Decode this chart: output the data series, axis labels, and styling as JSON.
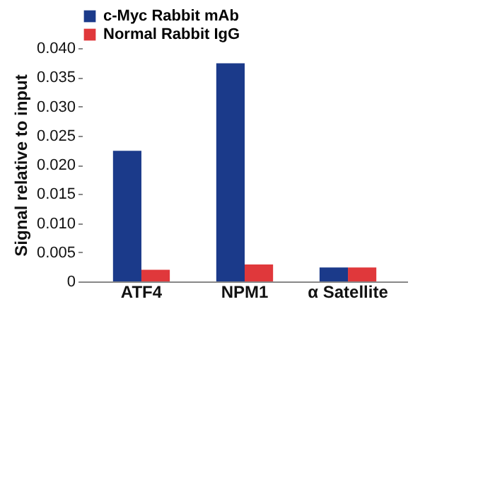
{
  "chart_data": {
    "type": "bar",
    "ylabel": "Signal relative to input",
    "categories": [
      "ATF4",
      "NPM1",
      "α Satellite"
    ],
    "series": [
      {
        "name": "c-Myc Rabbit mAb",
        "color": "#1b3a8a",
        "values": [
          0.0224,
          0.0374,
          0.0024
        ]
      },
      {
        "name": "Normal Rabbit IgG",
        "color": "#e0383b",
        "values": [
          0.002,
          0.0029,
          0.0024
        ]
      }
    ],
    "ylim": [
      0,
      0.04
    ],
    "yticks": [
      {
        "value": 0,
        "label": "0"
      },
      {
        "value": 0.005,
        "label": "0.005"
      },
      {
        "value": 0.01,
        "label": "0.010"
      },
      {
        "value": 0.015,
        "label": "0.015"
      },
      {
        "value": 0.02,
        "label": "0.020"
      },
      {
        "value": 0.025,
        "label": "0.025"
      },
      {
        "value": 0.03,
        "label": "0.030"
      },
      {
        "value": 0.035,
        "label": "0.035"
      },
      {
        "value": 0.04,
        "label": "0.040"
      }
    ],
    "grid": false,
    "legend": "top left"
  }
}
